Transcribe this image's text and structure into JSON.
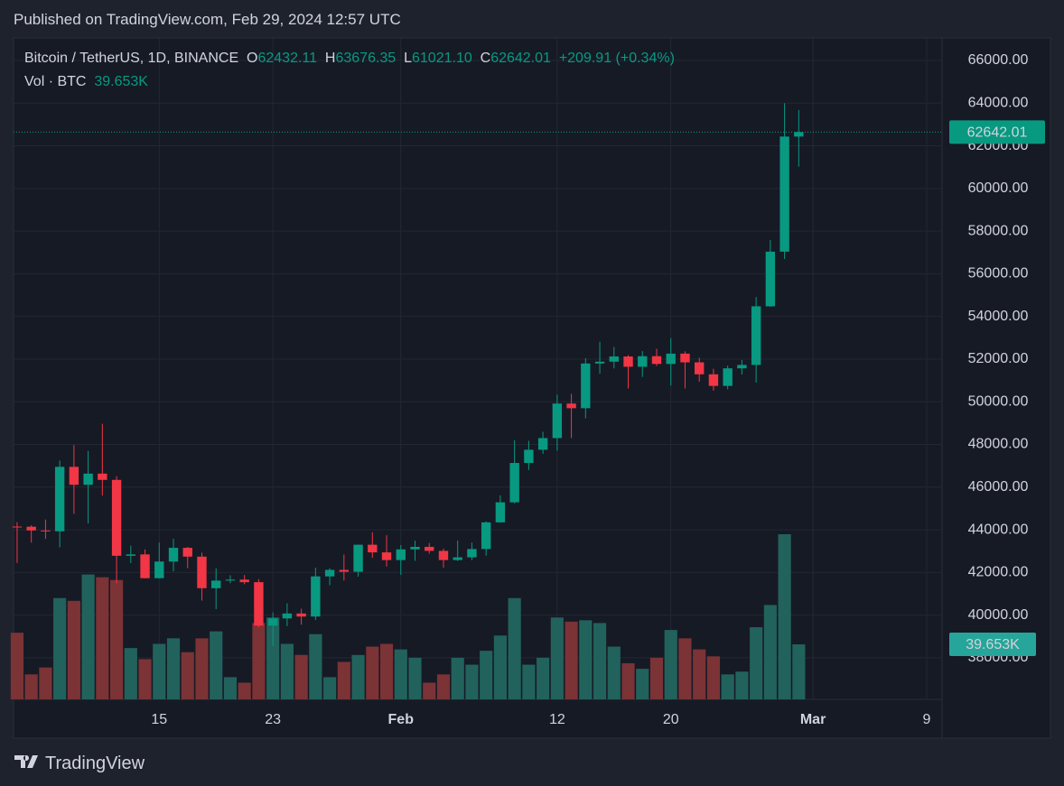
{
  "header": {
    "published": "Published on TradingView.com, Feb 29, 2024 12:57 UTC"
  },
  "legend": {
    "symbol": "Bitcoin / TetherUS, 1D, BINANCE",
    "open_key": "O",
    "open": "62432.11",
    "high_key": "H",
    "high": "63676.35",
    "low_key": "L",
    "low": "61021.10",
    "close_key": "C",
    "close": "62642.01",
    "change": "+209.91 (+0.34%)",
    "volume_key": "Vol · BTC",
    "volume": "39.653K"
  },
  "footer": {
    "brand": "TradingView"
  },
  "chart_data": {
    "type": "candlestick",
    "x": [
      "2024-01-05",
      "2024-01-06",
      "2024-01-07",
      "2024-01-08",
      "2024-01-09",
      "2024-01-10",
      "2024-01-11",
      "2024-01-12",
      "2024-01-13",
      "2024-01-14",
      "2024-01-15",
      "2024-01-16",
      "2024-01-17",
      "2024-01-18",
      "2024-01-19",
      "2024-01-20",
      "2024-01-21",
      "2024-01-22",
      "2024-01-23",
      "2024-01-24",
      "2024-01-25",
      "2024-01-26",
      "2024-01-27",
      "2024-01-28",
      "2024-01-29",
      "2024-01-30",
      "2024-01-31",
      "2024-02-01",
      "2024-02-02",
      "2024-02-03",
      "2024-02-04",
      "2024-02-05",
      "2024-02-06",
      "2024-02-07",
      "2024-02-08",
      "2024-02-09",
      "2024-02-10",
      "2024-02-11",
      "2024-02-12",
      "2024-02-13",
      "2024-02-14",
      "2024-02-15",
      "2024-02-16",
      "2024-02-17",
      "2024-02-18",
      "2024-02-19",
      "2024-02-20",
      "2024-02-21",
      "2024-02-22",
      "2024-02-23",
      "2024-02-24",
      "2024-02-25",
      "2024-02-26",
      "2024-02-27",
      "2024-02-28",
      "2024-02-29"
    ],
    "open": [
      44151,
      44145,
      43968,
      43929,
      46951,
      46110,
      46633,
      46339,
      42782,
      42847,
      41732,
      42511,
      43154,
      42742,
      41262,
      41618,
      41665,
      41545,
      39507,
      39845,
      40077,
      39933,
      41816,
      42120,
      42031,
      43300,
      42941,
      42580,
      43082,
      43200,
      43011,
      42582,
      42708,
      43098,
      44349,
      45288,
      47132,
      47751,
      48299,
      49917,
      49699,
      51795,
      51880,
      52124,
      51642,
      52137,
      51774,
      52258,
      51849,
      51288,
      50744,
      51568,
      51728,
      54476,
      57037,
      62432.11
    ],
    "high": [
      44357,
      44214,
      44480,
      47248,
      47972,
      47695,
      48969,
      46515,
      43257,
      43079,
      43400,
      43578,
      43198,
      42930,
      42195,
      41870,
      41880,
      41689,
      40129,
      40555,
      40300,
      42225,
      42200,
      42842,
      43305,
      43882,
      43745,
      43285,
      43488,
      43380,
      43119,
      43494,
      43400,
      44396,
      45614,
      48200,
      48170,
      48592,
      50334,
      50368,
      52043,
      52816,
      52572,
      52191,
      52377,
      52488,
      52985,
      52366,
      52065,
      51548,
      51698,
      51958,
      54910,
      57588,
      64000,
      63676.35
    ],
    "low": [
      42450,
      43397,
      43572,
      43175,
      44748,
      44300,
      45606,
      41500,
      42436,
      41720,
      41718,
      42050,
      42200,
      40683,
      40280,
      41500,
      41446,
      39431,
      38555,
      39484,
      39550,
      39771,
      41400,
      41620,
      41804,
      42683,
      42276,
      41884,
      42546,
      42880,
      42222,
      42536,
      42574,
      42788,
      44331,
      45242,
      46800,
      47557,
      47710,
      48300,
      49225,
      51314,
      51566,
      50625,
      51163,
      51677,
      50760,
      50625,
      50940,
      50521,
      50585,
      51279,
      50901,
      54450,
      56691,
      61021.1
    ],
    "close": [
      44145,
      43968,
      43929,
      46951,
      46110,
      46633,
      46339,
      42782,
      42847,
      41732,
      42511,
      43154,
      42742,
      41262,
      41618,
      41665,
      41545,
      39507,
      39845,
      40077,
      39933,
      41816,
      42120,
      42031,
      43300,
      42941,
      42580,
      43082,
      43200,
      43011,
      42582,
      42708,
      43098,
      44349,
      45288,
      47132,
      47751,
      48299,
      49917,
      49699,
      51795,
      51880,
      52124,
      51642,
      52137,
      51774,
      52258,
      51849,
      51288,
      50744,
      51568,
      51728,
      54476,
      57037,
      62432.11,
      62642.01
    ],
    "volume": [
      48,
      18,
      23,
      73,
      71,
      90,
      88,
      86,
      37,
      29,
      40,
      44,
      34,
      44,
      49,
      16,
      12,
      55,
      59,
      40,
      32,
      47,
      16,
      27,
      32,
      38,
      40,
      36,
      30,
      12,
      18,
      30,
      25,
      35,
      46,
      73,
      25,
      30,
      59,
      56,
      57,
      55,
      38,
      26,
      22,
      30,
      50,
      44,
      36,
      31,
      18,
      20,
      52,
      68,
      119,
      39.653
    ],
    "volume_label": "39.653K",
    "up_color": "#089981",
    "down_color": "#f23645",
    "volume_up_color": "#22625c",
    "volume_down_color": "#7b3336",
    "xlim": [
      "2024-01-04T18:00Z",
      "2024-03-10T02:00Z"
    ],
    "xticks": [
      {
        "value": "2024-01-15",
        "label": "15"
      },
      {
        "value": "2024-01-23",
        "label": "23"
      },
      {
        "value": "2024-02-01",
        "label": "Feb"
      },
      {
        "value": "2024-02-12",
        "label": "12"
      },
      {
        "value": "2024-02-20",
        "label": "20"
      },
      {
        "value": "2024-03-01",
        "label": "Mar"
      },
      {
        "value": "2024-03-09",
        "label": "9"
      }
    ],
    "ylim": [
      36051,
      67057
    ],
    "yticks": [
      {
        "value": 38000,
        "label": "38000.00"
      },
      {
        "value": 40000,
        "label": "40000.00"
      },
      {
        "value": 42000,
        "label": "42000.00"
      },
      {
        "value": 44000,
        "label": "44000.00"
      },
      {
        "value": 46000,
        "label": "46000.00"
      },
      {
        "value": 48000,
        "label": "48000.00"
      },
      {
        "value": 50000,
        "label": "50000.00"
      },
      {
        "value": 52000,
        "label": "52000.00"
      },
      {
        "value": 54000,
        "label": "54000.00"
      },
      {
        "value": 56000,
        "label": "56000.00"
      },
      {
        "value": 58000,
        "label": "58000.00"
      },
      {
        "value": 60000,
        "label": "60000.00"
      },
      {
        "value": 62000,
        "label": "62000.00"
      },
      {
        "value": 64000,
        "label": "64000.00"
      },
      {
        "value": 66000,
        "label": "66000.00"
      }
    ],
    "grid": true
  }
}
